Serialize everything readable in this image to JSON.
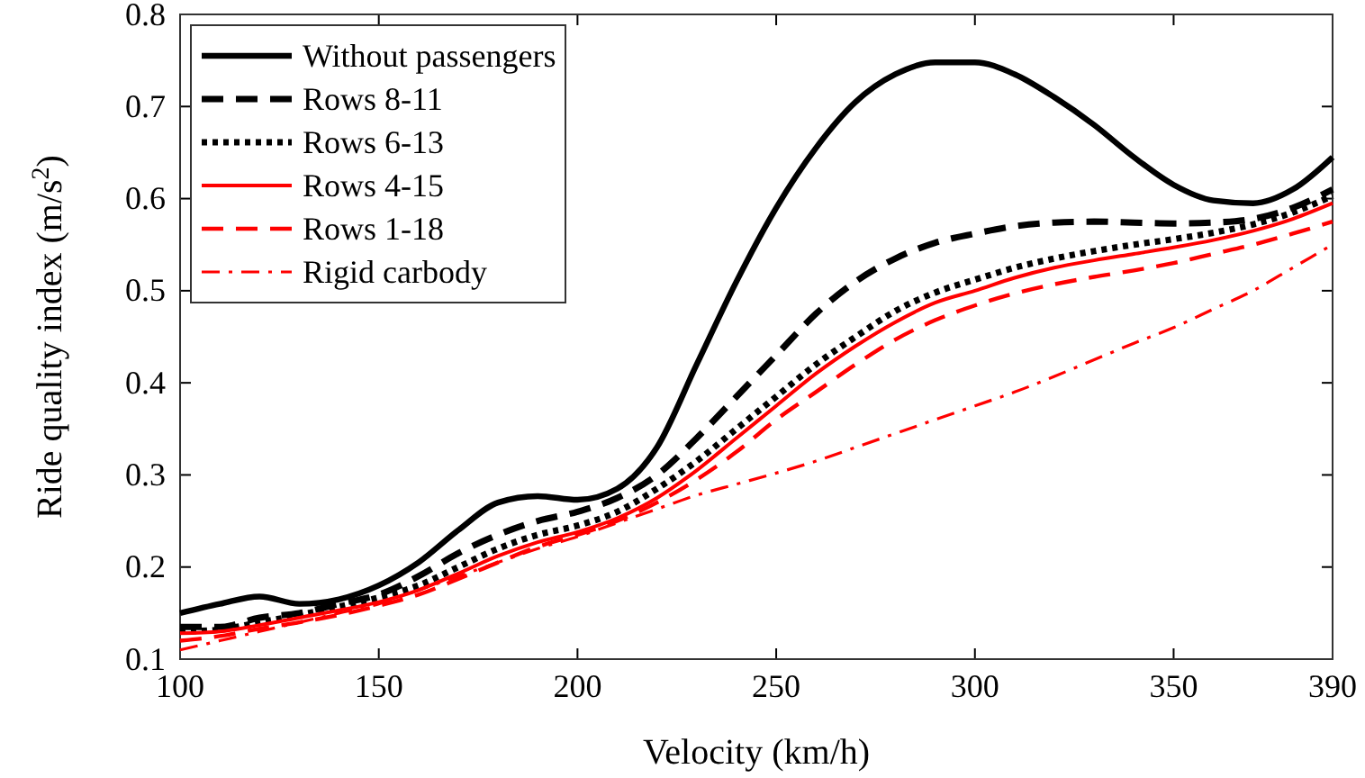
{
  "chart_data": {
    "type": "line",
    "xlabel": "Velocity (km/h)",
    "ylabel": "Ride quality index (m/s$^{2}$)",
    "x": [
      100,
      110,
      120,
      130,
      140,
      150,
      160,
      170,
      180,
      190,
      200,
      210,
      220,
      230,
      240,
      250,
      260,
      270,
      280,
      290,
      300,
      310,
      320,
      330,
      340,
      350,
      360,
      370,
      380,
      390
    ],
    "xlim": [
      100,
      390
    ],
    "xticks": [
      100,
      150,
      200,
      250,
      300,
      350,
      390
    ],
    "ylim": [
      0.1,
      0.8
    ],
    "yticks": [
      0.1,
      0.2,
      0.3,
      0.4,
      0.5,
      0.6,
      0.7,
      0.8
    ],
    "grid": false,
    "legend": "top left",
    "marker": "none",
    "series": [
      {
        "name": "Without passengers",
        "color": "#000000",
        "line_style": "solid",
        "values": [
          0.15,
          0.16,
          0.168,
          0.16,
          0.165,
          0.18,
          0.205,
          0.24,
          0.27,
          0.277,
          0.273,
          0.285,
          0.33,
          0.42,
          0.51,
          0.59,
          0.655,
          0.705,
          0.735,
          0.748,
          0.748,
          0.735,
          0.71,
          0.68,
          0.645,
          0.615,
          0.598,
          0.595,
          0.61,
          0.645
        ]
      },
      {
        "name": "Rows 8-11",
        "color": "#000000",
        "line_style": "dashed",
        "values": [
          0.135,
          0.135,
          0.145,
          0.15,
          0.16,
          0.17,
          0.19,
          0.215,
          0.235,
          0.25,
          0.26,
          0.275,
          0.3,
          0.34,
          0.385,
          0.43,
          0.475,
          0.51,
          0.535,
          0.552,
          0.562,
          0.57,
          0.574,
          0.575,
          0.574,
          0.573,
          0.574,
          0.578,
          0.59,
          0.61
        ]
      },
      {
        "name": "Rows 6-13",
        "color": "#000000",
        "line_style": "dotted",
        "values": [
          0.13,
          0.132,
          0.14,
          0.148,
          0.157,
          0.167,
          0.18,
          0.2,
          0.22,
          0.235,
          0.245,
          0.26,
          0.285,
          0.315,
          0.35,
          0.385,
          0.42,
          0.45,
          0.478,
          0.498,
          0.512,
          0.525,
          0.535,
          0.543,
          0.55,
          0.556,
          0.563,
          0.572,
          0.585,
          0.603
        ]
      },
      {
        "name": "Rows 4-15",
        "color": "#ff0000",
        "line_style": "solid",
        "values": [
          0.128,
          0.13,
          0.137,
          0.145,
          0.153,
          0.162,
          0.175,
          0.193,
          0.212,
          0.227,
          0.238,
          0.253,
          0.275,
          0.305,
          0.34,
          0.375,
          0.41,
          0.44,
          0.466,
          0.487,
          0.5,
          0.514,
          0.525,
          0.533,
          0.54,
          0.547,
          0.555,
          0.565,
          0.578,
          0.595
        ]
      },
      {
        "name": "Rows 1-18",
        "color": "#ff0000",
        "line_style": "dashed",
        "values": [
          0.12,
          0.125,
          0.133,
          0.14,
          0.148,
          0.158,
          0.17,
          0.187,
          0.205,
          0.222,
          0.235,
          0.25,
          0.27,
          0.295,
          0.325,
          0.36,
          0.39,
          0.42,
          0.447,
          0.468,
          0.484,
          0.497,
          0.507,
          0.515,
          0.522,
          0.53,
          0.54,
          0.55,
          0.562,
          0.575
        ]
      },
      {
        "name": "Rigid carbody",
        "color": "#ff0000",
        "line_style": "dashdot",
        "values": [
          0.11,
          0.12,
          0.13,
          0.14,
          0.15,
          0.16,
          0.175,
          0.19,
          0.205,
          0.22,
          0.233,
          0.248,
          0.263,
          0.278,
          0.29,
          0.302,
          0.315,
          0.33,
          0.345,
          0.36,
          0.375,
          0.39,
          0.407,
          0.425,
          0.443,
          0.46,
          0.48,
          0.5,
          0.525,
          0.55
        ]
      }
    ]
  }
}
